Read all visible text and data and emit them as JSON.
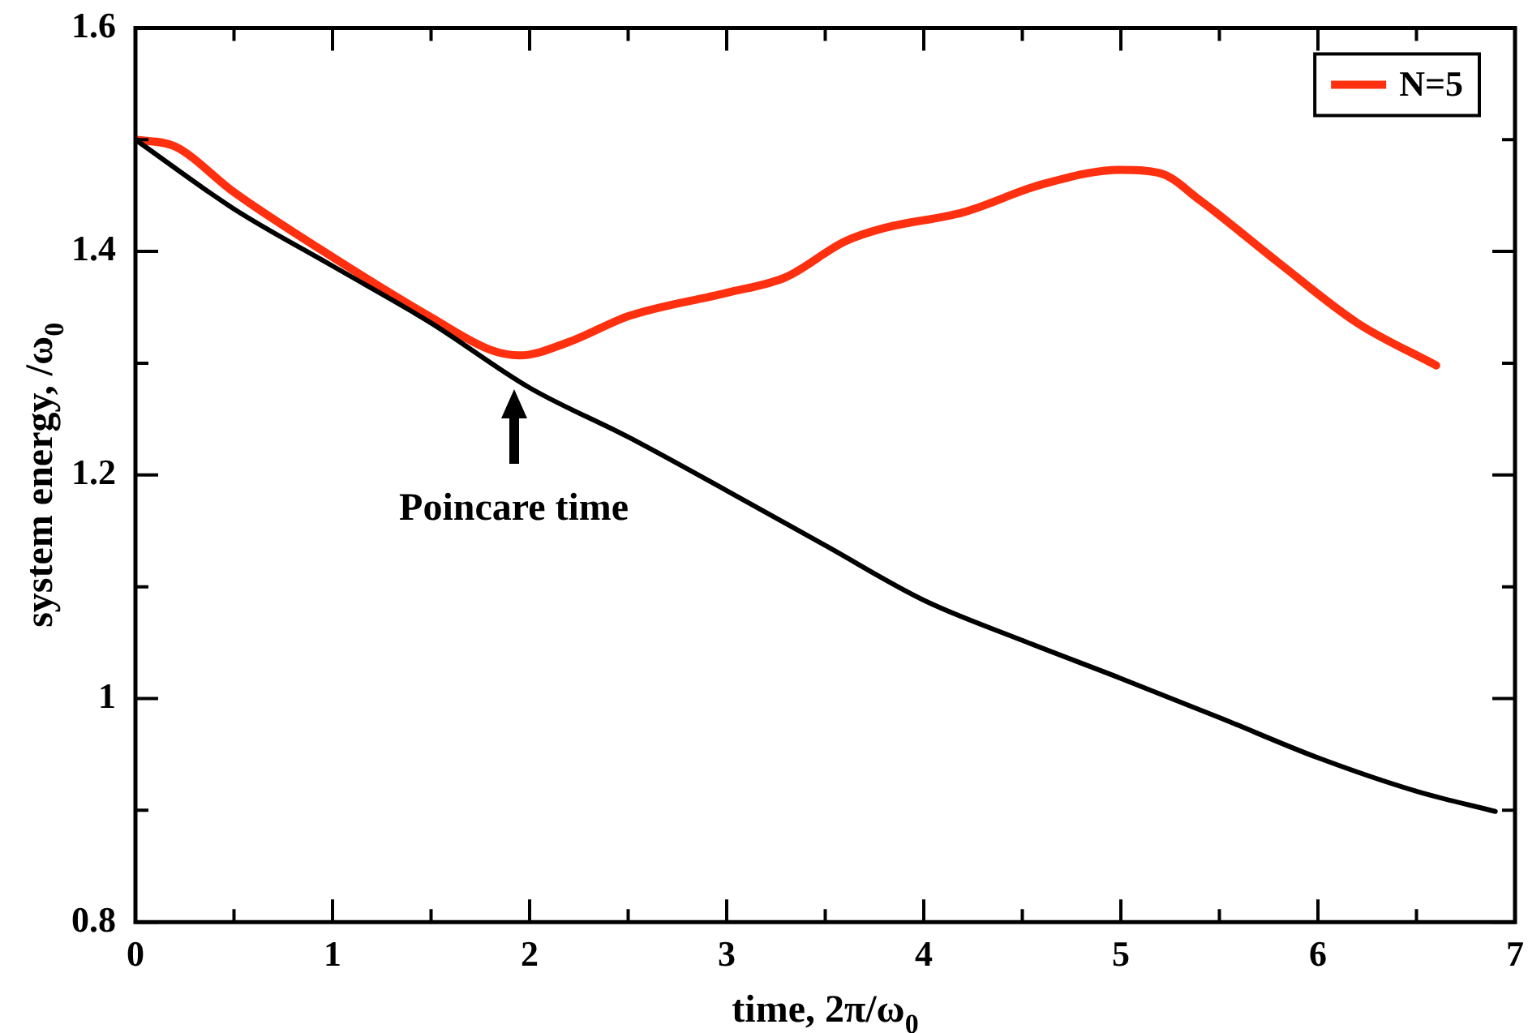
{
  "chart_data": {
    "type": "line",
    "xlabel": "time, 2π/ω$_{0}$",
    "ylabel": "system energy, /ω$_{0}$",
    "xlim": [
      0,
      7
    ],
    "ylim": [
      0.8,
      1.6
    ],
    "xticks": [
      0,
      {
        "value": 0.5,
        "label": null
      },
      1,
      {
        "value": 1.5,
        "label": null
      },
      2,
      {
        "value": 2.5,
        "label": null
      },
      3,
      {
        "value": 3.5,
        "label": null
      },
      4,
      {
        "value": 4.5,
        "label": null
      },
      5,
      {
        "value": 5.5,
        "label": null
      },
      6,
      {
        "value": 6.5,
        "label": null
      },
      7
    ],
    "yticks": [
      0.8,
      {
        "value": 0.9,
        "label": null
      },
      1,
      {
        "value": 1.1,
        "label": null
      },
      1.2,
      {
        "value": 1.3,
        "label": null
      },
      1.4,
      {
        "value": 1.5,
        "label": null
      },
      1.6
    ],
    "grid": false,
    "legend": "top right",
    "marker": "none",
    "line_style": "solid",
    "annotations": [
      {
        "text": "Poincare time",
        "x": 1.92,
        "y": 1.285
      }
    ],
    "series": [
      {
        "color": "#000000",
        "x": [
          0,
          0.5,
          1,
          1.5,
          2,
          2.5,
          3,
          3.5,
          4,
          4.5,
          5,
          5.5,
          6,
          6.5,
          6.9
        ],
        "values": [
          1.5,
          1.438,
          1.387,
          1.336,
          1.278,
          1.234,
          1.186,
          1.137,
          1.088,
          1.052,
          1.018,
          0.983,
          0.947,
          0.917,
          0.899
        ]
      },
      {
        "name": "N=5",
        "color": "#ff3010",
        "x": [
          0,
          0.2,
          0.5,
          1,
          1.5,
          1.8,
          1.95,
          2.2,
          2.5,
          3,
          3.3,
          3.6,
          3.8,
          4.2,
          4.6,
          5,
          5.2,
          5.4,
          5.8,
          6.2,
          6.6
        ],
        "values": [
          1.5,
          1.494,
          1.453,
          1.395,
          1.341,
          1.312,
          1.307,
          1.319,
          1.342,
          1.363,
          1.377,
          1.409,
          1.421,
          1.435,
          1.46,
          1.473,
          1.47,
          1.446,
          1.39,
          1.336,
          1.298
        ]
      }
    ]
  }
}
